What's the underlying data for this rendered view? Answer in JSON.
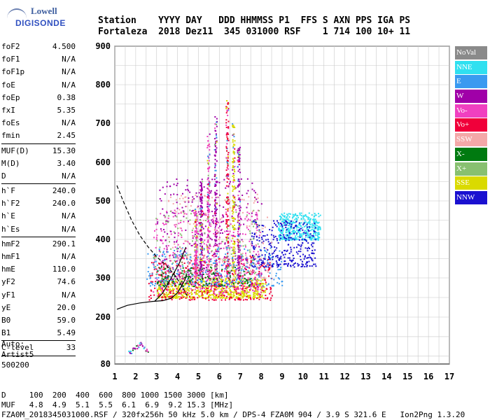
{
  "logo": {
    "line1": "Lowell",
    "line2": "DIGISONDE"
  },
  "header": {
    "labels_line": "Station    YYYY DAY   DDD HHMMSS P1  FFS S AXN PPS IGA PS",
    "values_line": "Fortaleza  2018 Dez11  345 031000 RSF    1 714 100 10+ 11"
  },
  "params": [
    {
      "name": "foF2",
      "value": "4.500"
    },
    {
      "name": "foF1",
      "value": "N/A"
    },
    {
      "name": "foF1p",
      "value": "N/A"
    },
    {
      "name": "foE",
      "value": "N/A"
    },
    {
      "name": "foEp",
      "value": "0.38"
    },
    {
      "name": "fxI",
      "value": "5.35"
    },
    {
      "name": "foEs",
      "value": "N/A"
    },
    {
      "name": "fmin",
      "value": "2.45"
    },
    {
      "sep": true
    },
    {
      "name": "MUF(D)",
      "value": "15.30"
    },
    {
      "name": "M(D)",
      "value": "3.40"
    },
    {
      "name": "D",
      "value": "N/A"
    },
    {
      "sep": true
    },
    {
      "name": "h`F",
      "value": "240.0"
    },
    {
      "name": "h`F2",
      "value": "240.0"
    },
    {
      "name": "h`E",
      "value": "N/A"
    },
    {
      "name": "h`Es",
      "value": "N/A"
    },
    {
      "sep": true
    },
    {
      "name": "hmF2",
      "value": "290.1"
    },
    {
      "name": "hmF1",
      "value": "N/A"
    },
    {
      "name": "hmE",
      "value": "110.0"
    },
    {
      "name": "yF2",
      "value": "74.6"
    },
    {
      "name": "yF1",
      "value": "N/A"
    },
    {
      "name": "yE",
      "value": "20.0"
    },
    {
      "name": "B0",
      "value": "59.0"
    },
    {
      "name": "B1",
      "value": "5.49"
    },
    {
      "sep": true
    },
    {
      "name": "C-level",
      "value": "33"
    },
    {
      "sep": true
    }
  ],
  "auto": {
    "line1": "Auto:",
    "line2": "Artist5",
    "line3": "500200"
  },
  "footer": {
    "d_line": "D     100  200  400  600  800 1000 1500 3000 [km]",
    "muf_line": "MUF   4.8  4.9  5.1  5.5  6.1  6.9  9.2 15.3 [MHz]",
    "file_line": "FZA0M_2018345031000.RSF / 320fx256h 50 kHz 5.0 km / DPS-4 FZA0M 904 / 3.9 S 321.6 E   Ion2Png 1.3.20"
  },
  "legend": [
    {
      "label": "NoVal",
      "color": "#8a8a8a"
    },
    {
      "label": "NNE",
      "color": "#30e0f0"
    },
    {
      "label": "E",
      "color": "#3a9af0"
    },
    {
      "label": "W",
      "color": "#a000a8"
    },
    {
      "label": "Vo-",
      "color": "#f040c0"
    },
    {
      "label": "Vo+",
      "color": "#f0003a"
    },
    {
      "label": "SSW",
      "color": "#f4a8a8"
    },
    {
      "label": "X-",
      "color": "#007a10"
    },
    {
      "label": "X+",
      "color": "#88c070"
    },
    {
      "label": "SSE",
      "color": "#dada00"
    },
    {
      "label": "NNW",
      "color": "#1a10d0"
    }
  ],
  "chart_data": {
    "type": "scatter",
    "xlim": [
      1,
      17
    ],
    "ylim": [
      80,
      900
    ],
    "x_ticks": [
      "1",
      "2",
      "3",
      "4",
      "5",
      "6",
      "7",
      "8",
      "9",
      "10",
      "11",
      "12",
      "13",
      "14",
      "15",
      "16",
      "17"
    ],
    "y_ticks": [
      "900",
      "800",
      "700",
      "600",
      "500",
      "400",
      "300",
      "200",
      "80"
    ],
    "y_tick_values": [
      900,
      800,
      700,
      600,
      500,
      400,
      300,
      200,
      80
    ],
    "grid": true,
    "clusters": [
      {
        "color_label": "SSE",
        "x_range": [
          3.0,
          8.2
        ],
        "h_range": [
          250,
          300
        ],
        "density": 0.9
      },
      {
        "color_label": "Vo+",
        "x_range": [
          2.6,
          8.5
        ],
        "h_range": [
          245,
          360
        ],
        "density": 0.6
      },
      {
        "color_label": "Vo-",
        "x_range": [
          2.8,
          8.0
        ],
        "h_range": [
          260,
          480
        ],
        "density": 0.5
      },
      {
        "color_label": "W",
        "x_range": [
          3.0,
          8.0
        ],
        "h_range": [
          280,
          560
        ],
        "density": 0.45
      },
      {
        "color_label": "E",
        "x_range": [
          2.5,
          9.0
        ],
        "h_range": [
          280,
          380
        ],
        "density": 0.4
      },
      {
        "color_label": "NNE",
        "x_range": [
          8.8,
          10.8
        ],
        "h_range": [
          400,
          470
        ],
        "density": 0.55
      },
      {
        "color_label": "NNW",
        "x_range": [
          7.5,
          10.6
        ],
        "h_range": [
          330,
          450
        ],
        "density": 0.45
      },
      {
        "color_label": "X-",
        "x_range": [
          3.0,
          7.5
        ],
        "h_range": [
          280,
          330
        ],
        "density": 0.2
      },
      {
        "color_label": "X+",
        "x_range": [
          2.8,
          8.0
        ],
        "h_range": [
          290,
          480
        ],
        "density": 0.2
      },
      {
        "color_label": "SSW",
        "x_range": [
          3.5,
          8.5
        ],
        "h_range": [
          300,
          520
        ],
        "density": 0.25
      }
    ],
    "columns": [
      {
        "x": 5.45,
        "h_top": 680,
        "color_label": "Vo-"
      },
      {
        "x": 5.8,
        "h_top": 720,
        "color_label": "W"
      },
      {
        "x": 6.35,
        "h_top": 760,
        "color_label": "Vo+"
      },
      {
        "x": 6.65,
        "h_top": 700,
        "color_label": "SSE"
      },
      {
        "x": 6.9,
        "h_top": 640,
        "color_label": "W"
      },
      {
        "x": 5.1,
        "h_top": 560,
        "color_label": "W"
      },
      {
        "x": 4.85,
        "h_top": 480,
        "color_label": "Vo-"
      }
    ],
    "low_points": [
      {
        "x": 1.9,
        "h": 118
      },
      {
        "x": 2.05,
        "h": 125
      },
      {
        "x": 2.2,
        "h": 132
      },
      {
        "x": 2.35,
        "h": 125
      },
      {
        "x": 2.5,
        "h": 115
      },
      {
        "x": 1.7,
        "h": 112
      }
    ],
    "dashed_trace": [
      [
        1.1,
        540
      ],
      [
        1.4,
        500
      ],
      [
        1.8,
        450
      ],
      [
        2.2,
        410
      ],
      [
        2.6,
        380
      ],
      [
        3.0,
        355
      ],
      [
        3.5,
        330
      ],
      [
        3.9,
        305
      ],
      [
        4.2,
        280
      ],
      [
        4.45,
        255
      ]
    ],
    "profile_trace": [
      [
        1.1,
        220
      ],
      [
        1.6,
        230
      ],
      [
        2.2,
        236
      ],
      [
        2.8,
        240
      ],
      [
        3.3,
        242
      ],
      [
        3.7,
        248
      ],
      [
        4.0,
        262
      ],
      [
        4.2,
        280
      ],
      [
        4.35,
        295
      ],
      [
        4.45,
        310
      ]
    ],
    "profile_trace_2": [
      [
        2.9,
        240
      ],
      [
        3.3,
        262
      ],
      [
        3.7,
        300
      ],
      [
        4.1,
        340
      ],
      [
        4.4,
        380
      ]
    ]
  }
}
